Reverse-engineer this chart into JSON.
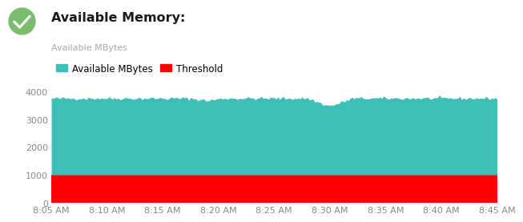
{
  "title": "Available Memory:",
  "ylabel": "Available MBytes",
  "bg_color": "#ffffff",
  "area_color": "#3DBFB8",
  "threshold_color": "#FF0000",
  "threshold_value": 1000,
  "ymin": 0,
  "ymax": 4400,
  "yticks": [
    0,
    1000,
    2000,
    3000,
    4000
  ],
  "x_labels": [
    "8:05 AM",
    "8:10 AM",
    "8:15 AM",
    "8:20 AM",
    "8:25 AM",
    "8:30 AM",
    "8:35 AM",
    "8:40 AM",
    "8:45 AM"
  ],
  "legend_items": [
    {
      "label": "Available MBytes",
      "color": "#3DBFB8"
    },
    {
      "label": "Threshold",
      "color": "#FF0000"
    }
  ],
  "header_text": "Available Memory:",
  "header_icon_color": "#7BBD6E",
  "num_points": 241,
  "base_value": 3750,
  "noise_seed": 42
}
